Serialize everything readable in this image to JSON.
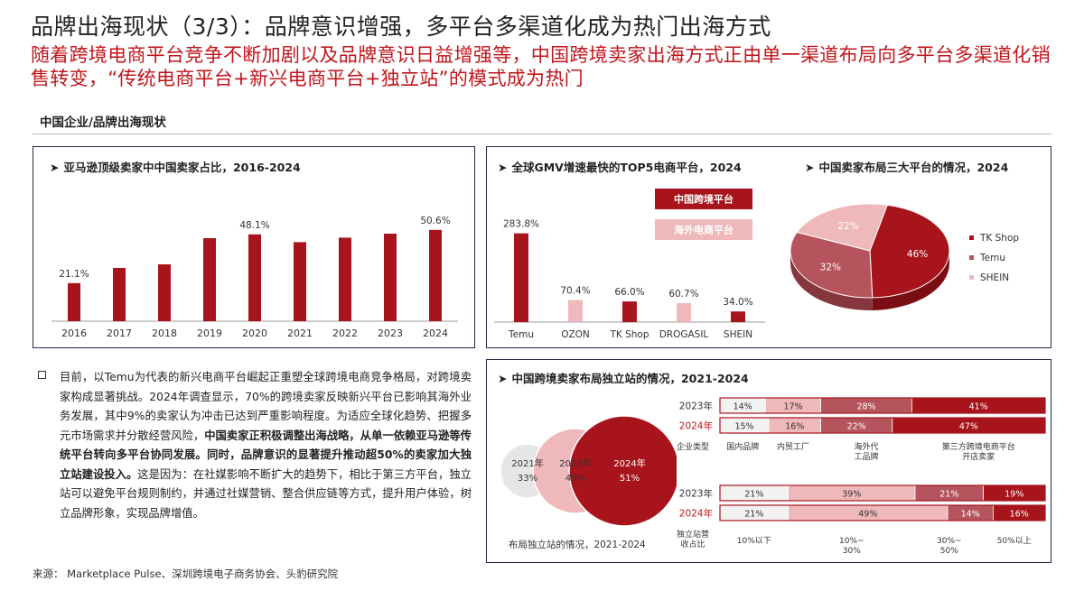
{
  "header": {
    "title": "品牌出海现状（3/3）：品牌意识增强，多平台多渠道化成为热门出海方式",
    "subtitle": "随着跨境电商平台竞争不断加剧以及品牌意识日益增强等，中国跨境卖家出海方式正由单一渠道布局向多平台多渠道化销售转变，“传统电商平台+新兴电商平台+独立站”的模式成为热门"
  },
  "section_label": "中国企业/品牌出海现状",
  "bullet": {
    "p1": "目前，以Temu为代表的新兴电商平台崛起正重塑全球跨境电商竞争格局，对跨境卖家构成显著挑战。2024年调查显示，70%的跨境卖家反映新兴平台已影响其海外业务发展，其中9%的卖家认为冲击已达到严重影响程度。为适应全球化趋势、把握多元市场需求并分散经营风险，",
    "p2": "中国卖家正积极调整出海战略，从单一依赖亚马逊等传统平台转向多平台协同发展。同时，品牌意识的显著提升推动超50%的卖家加大独立站建设投入。",
    "p3": "这是因为：在社媒影响不断扩大的趋势下，相比于第三方平台，独立站可以避免平台规则制约，并通过社媒营销、整合供应链等方式，提升用户体验，树立品牌形象，实现品牌增值。"
  },
  "source": "来源： Marketplace Pulse、深圳跨境电子商务协会、头豹研究院",
  "colors": {
    "dark_red": "#a8141c",
    "mid_red": "#b5545c",
    "light_pink": "#efb8bb",
    "navy_border": "#1f2a44",
    "grey_circle": "#e6e6e6"
  },
  "chart_data": [
    {
      "type": "bar",
      "title": "亚马逊顶级卖家中中国卖家占比，2016-2024",
      "categories": [
        "2016",
        "2017",
        "2018",
        "2019",
        "2020",
        "2021",
        "2022",
        "2023",
        "2024"
      ],
      "values": [
        21.1,
        29.5,
        31.5,
        46.0,
        48.1,
        43.8,
        46.3,
        48.5,
        50.6
      ],
      "data_labels": {
        "2016": "21.1%",
        "2020": "48.1%",
        "2024": "50.6%"
      },
      "ylim": [
        0,
        60
      ],
      "color": "#a8141c"
    },
    {
      "type": "bar",
      "title": "全球GMV增速最快的TOP5电商平台，2024",
      "categories": [
        "Temu",
        "OZON",
        "TK Shop",
        "DROGASIL",
        "SHEIN"
      ],
      "values": [
        283.8,
        70.4,
        66.0,
        60.7,
        34.0
      ],
      "labels": [
        "283.8%",
        "70.4%",
        "66.0%",
        "60.7%",
        "34.0%"
      ],
      "series_colors": [
        "#a8141c",
        "#efb8bb",
        "#a8141c",
        "#efb8bb",
        "#a8141c"
      ],
      "legend": [
        {
          "name": "中国跨境平台",
          "color": "#a8141c"
        },
        {
          "name": "海外电商平台",
          "color": "#efb8bb"
        }
      ],
      "ylim": [
        0,
        300
      ]
    },
    {
      "type": "pie",
      "title": "中国卖家布局三大平台的情况，2024",
      "slices": [
        {
          "name": "TK Shop",
          "value": 46,
          "label": "46%",
          "color": "#a8141c"
        },
        {
          "name": "Temu",
          "value": 32,
          "label": "32%",
          "color": "#b5545c"
        },
        {
          "name": "SHEIN",
          "value": 22,
          "label": "22%",
          "color": "#efb8bb"
        }
      ],
      "legend_position": "right"
    },
    {
      "type": "bubble",
      "title": "中国跨境卖家布局独立站的情况，2021-2024",
      "caption": "布局独立站的情况，2021-2024",
      "items": [
        {
          "year": "2021年",
          "value": 33,
          "label": "33%",
          "color": "#e6e6e6"
        },
        {
          "year": "2023年",
          "value": 49,
          "label": "49%",
          "color": "#efb8bb"
        },
        {
          "year": "2024年",
          "value": 51,
          "label": "51%",
          "color": "#a8141c"
        }
      ]
    },
    {
      "type": "stacked_bar",
      "row_label": "企业类型",
      "categories": [
        "国内品牌",
        "内贸工厂",
        "海外代工品牌",
        "第三方跨境电商平台开店卖家"
      ],
      "colors": [
        "#f2f2f2",
        "#efb8bb",
        "#b5545c",
        "#a8141c"
      ],
      "series": [
        {
          "name": "2023年",
          "values": [
            14,
            17,
            28,
            41
          ],
          "labels": [
            "14%",
            "17%",
            "28%",
            "41%"
          ]
        },
        {
          "name": "2024年",
          "values": [
            15,
            16,
            22,
            47
          ],
          "labels": [
            "15%",
            "16%",
            "22%",
            "47%"
          ]
        }
      ]
    },
    {
      "type": "stacked_bar",
      "row_label": "独立站营收占比",
      "categories": [
        "10%以下",
        "10%~30%",
        "30%~50%",
        "50%以上"
      ],
      "colors": [
        "#f2f2f2",
        "#efb8bb",
        "#b5545c",
        "#a8141c"
      ],
      "series": [
        {
          "name": "2023年",
          "values": [
            21,
            39,
            21,
            19
          ],
          "labels": [
            "21%",
            "39%",
            "21%",
            "19%"
          ]
        },
        {
          "name": "2024年",
          "values": [
            21,
            49,
            14,
            16
          ],
          "labels": [
            "21%",
            "49%",
            "14%",
            "16%"
          ]
        }
      ]
    }
  ]
}
